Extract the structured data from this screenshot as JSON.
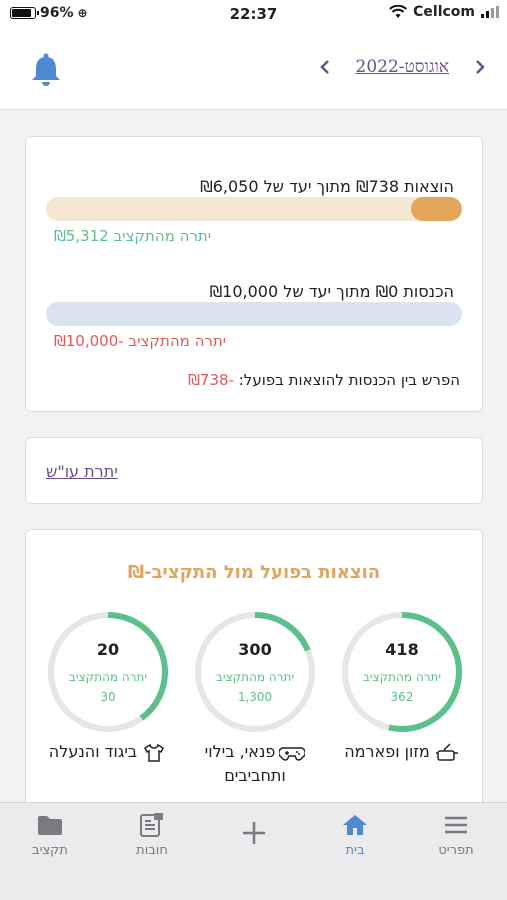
{
  "status_bar": {
    "battery": "96%",
    "time": "22:37",
    "carrier": "Cellcom"
  },
  "header": {
    "month_label": "אוגוסט-2022"
  },
  "summary": {
    "expenses_line": "הוצאות ₪738 מתוך יעד של ₪6,050",
    "expenses_fraction": 0.122,
    "expenses_remaining": "יתרה מהתקציב ₪5,312",
    "income_line": "הכנסות ₪0 מתוך יעד של ₪10,000",
    "income_fraction": 0,
    "income_remaining": "יתרה מהתקציב -₪10,000",
    "diff_label": "הפרש בין הכנסות להוצאות בפועל:",
    "diff_value": "-₪738"
  },
  "osh": {
    "link": "יתרת עו\"ש"
  },
  "budget": {
    "title": "הוצאות בפועל מול התקציב-₪",
    "remaining_label": "יתרה מהתקציב",
    "categories": [
      {
        "value": "418",
        "remaining": "362",
        "fraction": 0.536,
        "name": "מזון ופארמה",
        "icon": "cooking-pot-icon"
      },
      {
        "value": "300",
        "remaining": "1,300",
        "fraction": 0.188,
        "name": "פנאי, בילוי ותחביבים",
        "icon": "gamepad-icon"
      },
      {
        "value": "20",
        "remaining": "30",
        "fraction": 0.4,
        "name": "ביגוד והנעלה",
        "icon": "shirt-icon"
      }
    ]
  },
  "tabs": [
    {
      "label": "תפריט",
      "icon": "menu-icon"
    },
    {
      "label": "בית",
      "icon": "home-icon",
      "active": true
    },
    {
      "label": "",
      "icon": "plus-icon"
    },
    {
      "label": "חובות",
      "icon": "receipt-icon"
    },
    {
      "label": "תקציב",
      "icon": "folder-icon"
    }
  ],
  "colors": {
    "accent_purple": "#6b4f8a",
    "expense_bar": "#e2a55a",
    "expense_track": "#f6e7d4",
    "income_track": "#d9e4f0",
    "green": "#5cc08a",
    "red": "#e05a5a",
    "blue": "#4d8ad1"
  }
}
